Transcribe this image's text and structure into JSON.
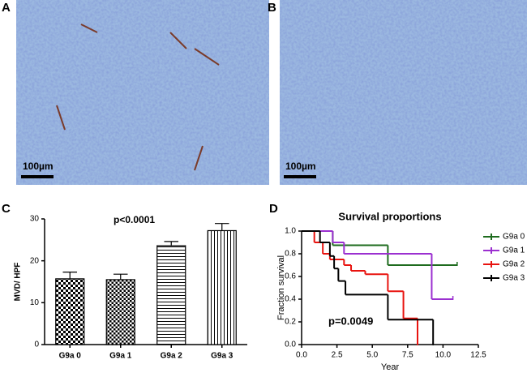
{
  "images": [
    {
      "label": "A",
      "scale_bar": "100µm"
    },
    {
      "label": "B",
      "scale_bar": "100µm"
    }
  ],
  "panel_labels": [
    "C",
    "D"
  ],
  "chart_data": [
    {
      "type": "bar",
      "ylabel": "MVD/ HPF",
      "annotation": "p<0.0001",
      "categories": [
        "G9a 0",
        "G9a 1",
        "G9a 2",
        "G9a 3"
      ],
      "values": [
        15.7,
        15.5,
        23.6,
        27.2
      ],
      "errors": [
        1.6,
        1.3,
        1.0,
        1.7
      ],
      "ylim": [
        0,
        30
      ],
      "yticks": [
        0,
        10,
        20,
        30
      ]
    },
    {
      "type": "step",
      "title": "Survival proportions",
      "xlabel": "Year",
      "ylabel": "Fraction survival",
      "annotation": "p=0.0049",
      "xlim": [
        0,
        12.5
      ],
      "xticks": [
        {
          "value": 0,
          "label": "0.0"
        },
        2.5,
        {
          "value": 5,
          "label": "5.0"
        },
        7.5,
        {
          "value": 10,
          "label": "10.0"
        },
        12.5
      ],
      "ylim": [
        0,
        1
      ],
      "yticks": [
        {
          "value": 0,
          "label": "0.0"
        },
        0.2,
        0.4,
        0.6,
        0.8,
        {
          "value": 1,
          "label": "1.0"
        }
      ],
      "series": [
        {
          "name": "G9a 0",
          "color": "#1e6b1e",
          "x": [
            0,
            2.2,
            6.1,
            11
          ],
          "values": [
            1,
            0.875,
            0.7,
            0.7
          ]
        },
        {
          "name": "G9a 1",
          "color": "#9b30d0",
          "x": [
            0,
            2.2,
            3.0,
            9.2,
            10.7
          ],
          "values": [
            1,
            0.9,
            0.8,
            0.4,
            0.4
          ]
        },
        {
          "name": "G9a 2",
          "color": "#e8130f",
          "x": [
            0,
            0.9,
            1.5,
            2.0,
            3.0,
            3.5,
            4.5,
            6.1,
            7.2,
            8.2
          ],
          "values": [
            1,
            0.9,
            0.8,
            0.75,
            0.7,
            0.65,
            0.62,
            0.47,
            0.23,
            0
          ]
        },
        {
          "name": "G9a 3",
          "color": "#000000",
          "x": [
            0,
            1.3,
            2.0,
            2.3,
            2.6,
            3.1,
            6.1,
            9.3
          ],
          "values": [
            1,
            0.9,
            0.78,
            0.67,
            0.56,
            0.44,
            0.22,
            0
          ]
        }
      ]
    }
  ]
}
